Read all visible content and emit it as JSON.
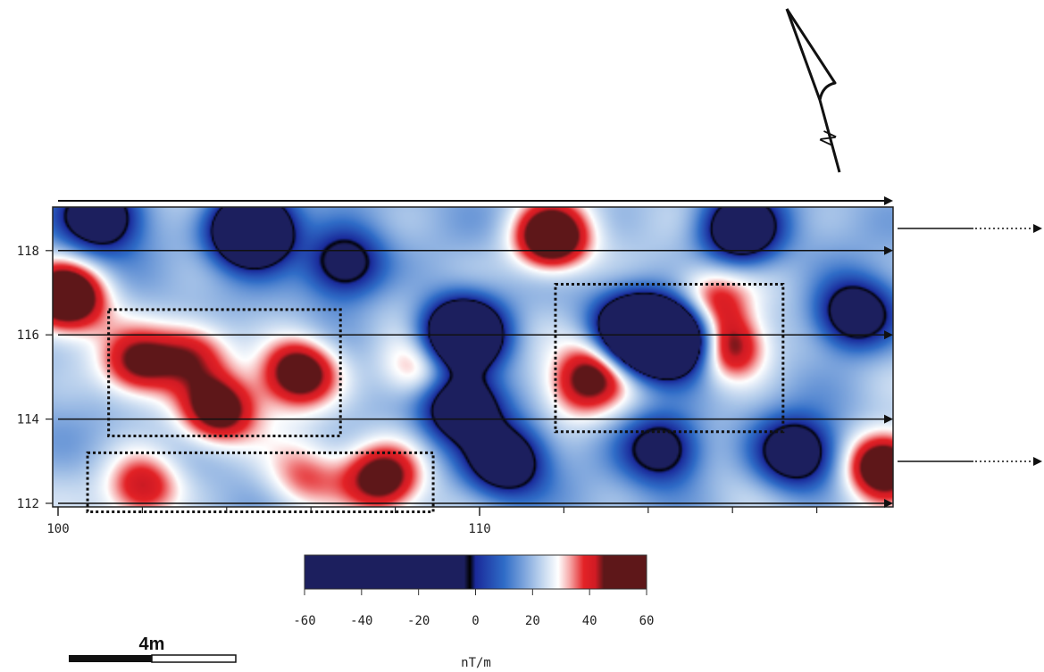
{
  "map": {
    "grid_extent": {
      "x_start": 100,
      "x_end": 120,
      "y_start": 112,
      "y_end": 119
    },
    "x_axis_labels": [
      {
        "value": 100,
        "label": "100"
      },
      {
        "value": 110,
        "label": "110"
      }
    ],
    "x_minor_ticks": [
      102,
      104,
      106,
      108,
      112,
      114,
      116,
      118
    ],
    "y_axis_labels": [
      {
        "value": 112,
        "label": "112"
      },
      {
        "value": 114,
        "label": "114"
      },
      {
        "value": 116,
        "label": "116"
      },
      {
        "value": 118,
        "label": "118"
      }
    ],
    "traverse_lines_y": [
      112,
      114,
      116,
      118
    ],
    "anomaly_boxes": [
      {
        "x0": 101.2,
        "x1": 106.7,
        "y0": 113.6,
        "y1": 116.6
      },
      {
        "x0": 100.7,
        "x1": 108.9,
        "y0": 111.8,
        "y1": 113.2
      },
      {
        "x0": 111.8,
        "x1": 117.2,
        "y0": 113.7,
        "y1": 117.2
      }
    ],
    "anomalies": [
      {
        "x": 100.2,
        "y": 116.9,
        "value": 60
      },
      {
        "x": 101.9,
        "y": 115.3,
        "value": 45
      },
      {
        "x": 103.2,
        "y": 115.6,
        "value": 40
      },
      {
        "x": 103.8,
        "y": 114.2,
        "value": 50
      },
      {
        "x": 105.7,
        "y": 115.1,
        "value": 55
      },
      {
        "x": 104.6,
        "y": 118.5,
        "value": -55
      },
      {
        "x": 102.0,
        "y": 112.4,
        "value": 45
      },
      {
        "x": 107.7,
        "y": 112.6,
        "value": 50
      },
      {
        "x": 105.8,
        "y": 112.6,
        "value": 35
      },
      {
        "x": 108.6,
        "y": 115.2,
        "value": 40
      },
      {
        "x": 109.6,
        "y": 116.0,
        "value": -50
      },
      {
        "x": 109.6,
        "y": 114.3,
        "value": -25
      },
      {
        "x": 111.7,
        "y": 118.3,
        "value": 60
      },
      {
        "x": 113.7,
        "y": 116.0,
        "value": -60
      },
      {
        "x": 114.6,
        "y": 115.9,
        "value": -45
      },
      {
        "x": 113.1,
        "y": 115.5,
        "value": 45
      },
      {
        "x": 112.4,
        "y": 114.8,
        "value": 40
      },
      {
        "x": 115.9,
        "y": 115.7,
        "value": 50
      },
      {
        "x": 115.5,
        "y": 116.8,
        "value": 40
      },
      {
        "x": 119.6,
        "y": 112.9,
        "value": 60
      },
      {
        "x": 116.2,
        "y": 118.5,
        "value": -25
      },
      {
        "x": 118.9,
        "y": 116.5,
        "value": -20
      },
      {
        "x": 117.5,
        "y": 113.2,
        "value": -20
      },
      {
        "x": 106.8,
        "y": 117.7,
        "value": -15
      },
      {
        "x": 110.6,
        "y": 113.0,
        "value": -20
      },
      {
        "x": 114.3,
        "y": 113.3,
        "value": -15
      },
      {
        "x": 103.4,
        "y": 118.9,
        "value": 25
      },
      {
        "x": 101.0,
        "y": 118.8,
        "value": -20
      }
    ]
  },
  "colorbar": {
    "unit": "nT/m",
    "min": -60,
    "max": 60,
    "ticks": [
      {
        "value": -60,
        "label": "-60"
      },
      {
        "value": -40,
        "label": "-40"
      },
      {
        "value": -20,
        "label": "-20"
      },
      {
        "value": 0,
        "label": "0"
      },
      {
        "value": 20,
        "label": "20"
      },
      {
        "value": 40,
        "label": "40"
      },
      {
        "value": 60,
        "label": "60"
      }
    ],
    "stops": [
      {
        "value": -60,
        "color": "#1c1f5e"
      },
      {
        "value": -4,
        "color": "#1c1f5e"
      },
      {
        "value": -2,
        "color": "#000000"
      },
      {
        "value": 0,
        "color": "#1a2a9a"
      },
      {
        "value": 10,
        "color": "#2f6cc7"
      },
      {
        "value": 22,
        "color": "#b3cceb"
      },
      {
        "value": 29,
        "color": "#ffffff"
      },
      {
        "value": 33,
        "color": "#f6a9a9"
      },
      {
        "value": 38,
        "color": "#e32226"
      },
      {
        "value": 42,
        "color": "#d11b24"
      },
      {
        "value": 45,
        "color": "#5e1719"
      },
      {
        "value": 60,
        "color": "#5e1719"
      }
    ]
  },
  "scale_bar": {
    "label": "4m",
    "length_m": 4
  },
  "north_arrow": {
    "label": "N"
  }
}
